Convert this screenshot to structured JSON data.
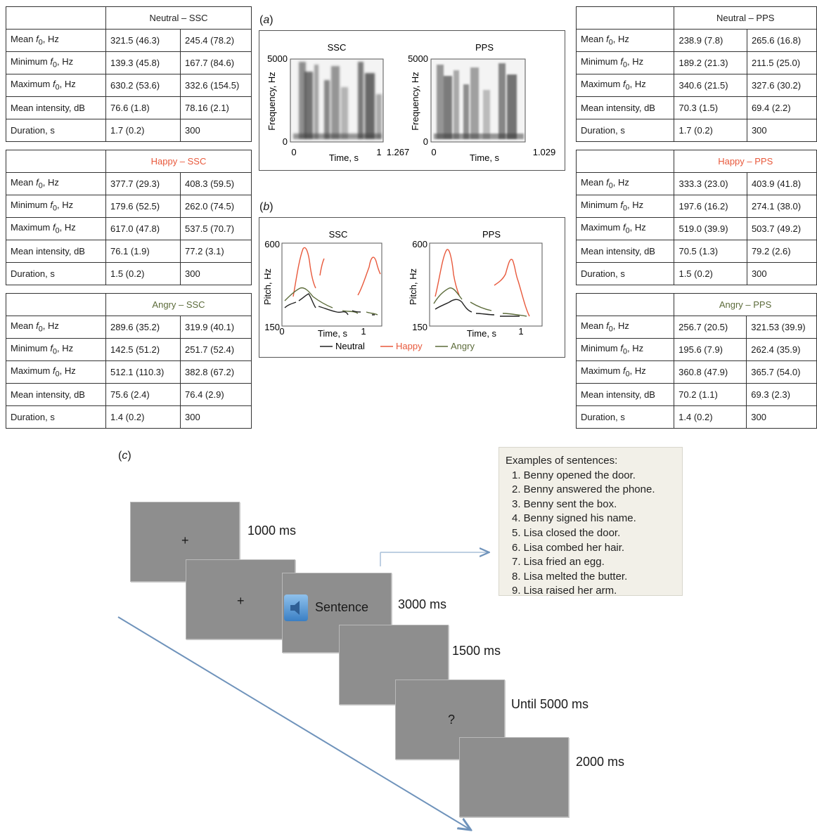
{
  "row_labels": [
    "Mean f0, Hz",
    "Minimum f0, Hz",
    "Maximum f0, Hz",
    "Mean intensity, dB",
    "Duration, s"
  ],
  "colors": {
    "neutral": "#222222",
    "happy": "#e8593c",
    "angry": "#5c6b3a"
  },
  "tables_left": [
    {
      "title": "Neutral – SSC",
      "emotion": "neutral",
      "c1": [
        "321.5 (46.3)",
        "139.3 (45.8)",
        "630.2 (53.6)",
        "76.6 (1.8)",
        "1.7 (0.2)"
      ],
      "c2": [
        "245.4 (78.2)",
        "167.7 (84.6)",
        "332.6 (154.5)",
        "78.16 (2.1)",
        "300"
      ]
    },
    {
      "title": "Happy – SSC",
      "emotion": "happy",
      "c1": [
        "377.7 (29.3)",
        "179.6 (52.5)",
        "617.0 (47.8)",
        "76.1 (1.9)",
        "1.5 (0.2)"
      ],
      "c2": [
        "408.3 (59.5)",
        "262.0 (74.5)",
        "537.5 (70.7)",
        "77.2 (3.1)",
        "300"
      ]
    },
    {
      "title": "Angry – SSC",
      "emotion": "angry",
      "c1": [
        "289.6 (35.2)",
        "142.5 (51.2)",
        "512.1 (110.3)",
        "75.6 (2.4)",
        "1.4 (0.2)"
      ],
      "c2": [
        "319.9 (40.1)",
        "251.7 (52.4)",
        "382.8 (67.2)",
        "76.4 (2.9)",
        "300"
      ]
    }
  ],
  "tables_right": [
    {
      "title": "Neutral – PPS",
      "emotion": "neutral",
      "c1": [
        "238.9 (7.8)",
        "189.2 (21.3)",
        "340.6 (21.5)",
        "70.3 (1.5)",
        "1.7 (0.2)"
      ],
      "c2": [
        "265.6 (16.8)",
        "211.5 (25.0)",
        "327.6 (30.2)",
        "69.4 (2.2)",
        "300"
      ]
    },
    {
      "title": "Happy – PPS",
      "emotion": "happy",
      "c1": [
        "333.3 (23.0)",
        "197.6 (16.2)",
        "519.0 (39.9)",
        "70.5 (1.3)",
        "1.5 (0.2)"
      ],
      "c2": [
        "403.9 (41.8)",
        "274.1 (38.0)",
        "503.7 (49.2)",
        "79.2 (2.6)",
        "300"
      ]
    },
    {
      "title": "Angry – PPS",
      "emotion": "angry",
      "c1": [
        "256.7 (20.5)",
        "195.6 (7.9)",
        "360.8 (47.9)",
        "70.2 (1.1)",
        "1.4 (0.2)"
      ],
      "c2": [
        "321.53 (39.9)",
        "262.4 (35.9)",
        "365.7 (54.0)",
        "69.3 (2.3)",
        "300"
      ]
    }
  ],
  "panel_a": {
    "label_open": "(",
    "label_letter": "a",
    "label_close": ")",
    "left": {
      "title": "SSC",
      "ylabel": "Frequency, Hz",
      "ytop": "5000",
      "ybottom": "0",
      "xstart": "0",
      "xlabel": "Time, s",
      "xmid": "1",
      "xend": "1.267"
    },
    "right": {
      "title": "PPS",
      "ylabel": "Frequency, Hz",
      "ytop": "5000",
      "ybottom": "0",
      "xstart": "0",
      "xlabel": "Time, s",
      "xend": "1.029"
    }
  },
  "panel_b": {
    "label_open": "(",
    "label_letter": "b",
    "label_close": ")",
    "left": {
      "title": "SSC",
      "ylabel": "Pitch, Hz",
      "ytop": "600",
      "ybottom": "150",
      "xstart": "0",
      "xlabel": "Time, s",
      "xend": "1"
    },
    "right": {
      "title": "PPS",
      "ylabel": "Pitch, Hz",
      "ytop": "600",
      "ybottom": "150",
      "xstart": "0",
      "xlabel": "Time, s",
      "xend": "1"
    },
    "legend": [
      "Neutral",
      "Happy",
      "Angry"
    ]
  },
  "panel_c": {
    "label_open": "(",
    "label_letter": "c",
    "label_close": ")",
    "fixation": "+",
    "sentence": "Sentence",
    "question": "?",
    "durations": [
      "1000 ms",
      "3000 ms",
      "1500 ms",
      "Until 5000 ms",
      "2000 ms"
    ],
    "speaker_icon": "speaker-icon",
    "examples_title": "Examples of sentences:",
    "examples": [
      "1. Benny opened the door.",
      "2. Benny answered the phone.",
      "3. Benny sent the box.",
      "4. Benny signed his name.",
      "5. Lisa closed the door.",
      "6. Lisa combed her hair.",
      "7. Lisa fried an egg.",
      "8. Lisa melted the butter.",
      "9. Lisa raised her arm."
    ]
  }
}
